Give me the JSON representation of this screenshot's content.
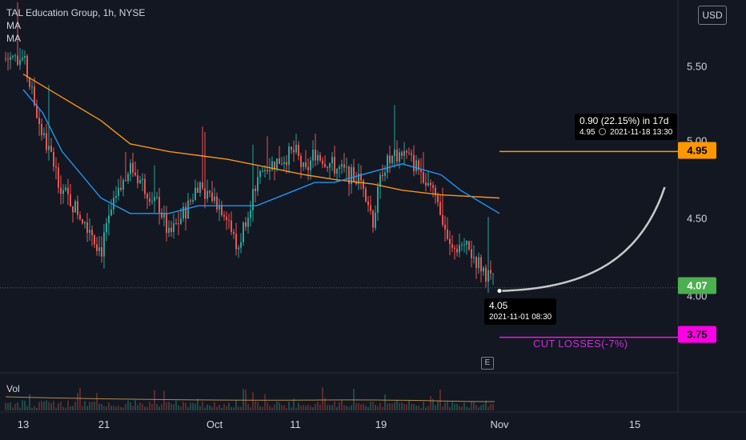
{
  "legend": {
    "title": "TAL Education Group, 1h, NYSE",
    "ma1": "MA",
    "ma2": "MA"
  },
  "currency": "USD",
  "volume_label": "Vol",
  "earnings_marker": "E",
  "projection": {
    "line1": "0.90 (22.15%) in 17d",
    "line2_price": "4.95",
    "line2_date": "2021-11-18  13:30"
  },
  "point": {
    "price": "4.05",
    "date": "2021-11-01 08:30"
  },
  "cut_losses_label": "CUT LOSSES(-7%)",
  "badges": {
    "target": "4.95",
    "current": "4.07",
    "stop": "3.75"
  },
  "colors": {
    "background": "#131722",
    "up": "#26a69a",
    "down": "#ef5350",
    "ma_fast": "#2196f3",
    "ma_slow": "#f7931a",
    "target_line": "#ff9800",
    "stop_line": "#e91ee0",
    "current_badge": "#4caf50",
    "cut_text": "#c72fd6"
  },
  "chart_data": {
    "type": "candlestick",
    "title": "TAL Education Group, 1h, NYSE",
    "x_tick_labels": [
      "13",
      "21",
      "Oct",
      "11",
      "19",
      "Nov",
      "15"
    ],
    "y_tick_labels": [
      "5.50",
      "5.00",
      "4.50",
      "4.00"
    ],
    "ylim": [
      3.5,
      5.8
    ],
    "price_series": {
      "name": "",
      "points": [
        [
          "Sep 13",
          5.55
        ],
        [
          "Sep 14",
          5.3
        ],
        [
          "Sep 15",
          5.05
        ],
        [
          "Sep 16",
          4.9
        ],
        [
          "Sep 17",
          4.7
        ],
        [
          "Sep 20",
          4.45
        ],
        [
          "Sep 21",
          4.3
        ],
        [
          "Sep 22",
          4.55
        ],
        [
          "Sep 24",
          4.85
        ],
        [
          "Sep 27",
          4.6
        ],
        [
          "Sep 28",
          4.4
        ],
        [
          "Sep 30",
          4.6
        ],
        [
          "Oct 1",
          4.75
        ],
        [
          "Oct 4",
          4.55
        ],
        [
          "Oct 5",
          4.3
        ],
        [
          "Oct 6",
          4.55
        ],
        [
          "Oct 7",
          4.75
        ],
        [
          "Oct 8",
          4.85
        ],
        [
          "Oct 11",
          4.95
        ],
        [
          "Oct 12",
          4.8
        ],
        [
          "Oct 13",
          4.95
        ],
        [
          "Oct 15",
          4.85
        ],
        [
          "Oct 18",
          4.75
        ],
        [
          "Oct 19",
          4.5
        ],
        [
          "Oct 20",
          4.85
        ],
        [
          "Oct 21",
          4.9
        ],
        [
          "Oct 22",
          4.95
        ],
        [
          "Oct 25",
          4.75
        ],
        [
          "Oct 26",
          4.55
        ],
        [
          "Oct 27",
          4.3
        ],
        [
          "Oct 28",
          4.35
        ],
        [
          "Oct 29",
          4.3
        ],
        [
          "Nov 1",
          4.05
        ]
      ]
    },
    "ma_fast": {
      "name": "MA",
      "points": [
        [
          "Sep 13",
          5.35
        ],
        [
          "Sep 15",
          5.2
        ],
        [
          "Sep 17",
          4.95
        ],
        [
          "Sep 21",
          4.65
        ],
        [
          "Sep 24",
          4.55
        ],
        [
          "Sep 28",
          4.55
        ],
        [
          "Oct 1",
          4.6
        ],
        [
          "Oct 5",
          4.6
        ],
        [
          "Oct 7",
          4.6
        ],
        [
          "Oct 11",
          4.7
        ],
        [
          "Oct 13",
          4.75
        ],
        [
          "Oct 15",
          4.75
        ],
        [
          "Oct 19",
          4.82
        ],
        [
          "Oct 22",
          4.87
        ],
        [
          "Oct 26",
          4.8
        ],
        [
          "Oct 28",
          4.7
        ],
        [
          "Nov 1",
          4.55
        ]
      ]
    },
    "ma_slow": {
      "name": "MA",
      "points": [
        [
          "Sep 13",
          5.45
        ],
        [
          "Sep 17",
          5.3
        ],
        [
          "Sep 21",
          5.15
        ],
        [
          "Sep 24",
          5.0
        ],
        [
          "Sep 28",
          4.95
        ],
        [
          "Oct 4",
          4.9
        ],
        [
          "Oct 8",
          4.85
        ],
        [
          "Oct 12",
          4.8
        ],
        [
          "Oct 15",
          4.77
        ],
        [
          "Oct 19",
          4.74
        ],
        [
          "Oct 22",
          4.7
        ],
        [
          "Oct 26",
          4.67
        ],
        [
          "Nov 1",
          4.65
        ]
      ]
    },
    "horizontal_lines": [
      {
        "value": 4.95,
        "label": "4.95"
      },
      {
        "value": 4.07,
        "label": "4.07"
      },
      {
        "value": 3.75,
        "label": "3.75"
      }
    ],
    "projection_curve": {
      "from": [
        "Nov 1",
        4.05
      ],
      "to": [
        "Nov 18",
        4.95
      ]
    },
    "grid": false,
    "legend": "top-left"
  }
}
